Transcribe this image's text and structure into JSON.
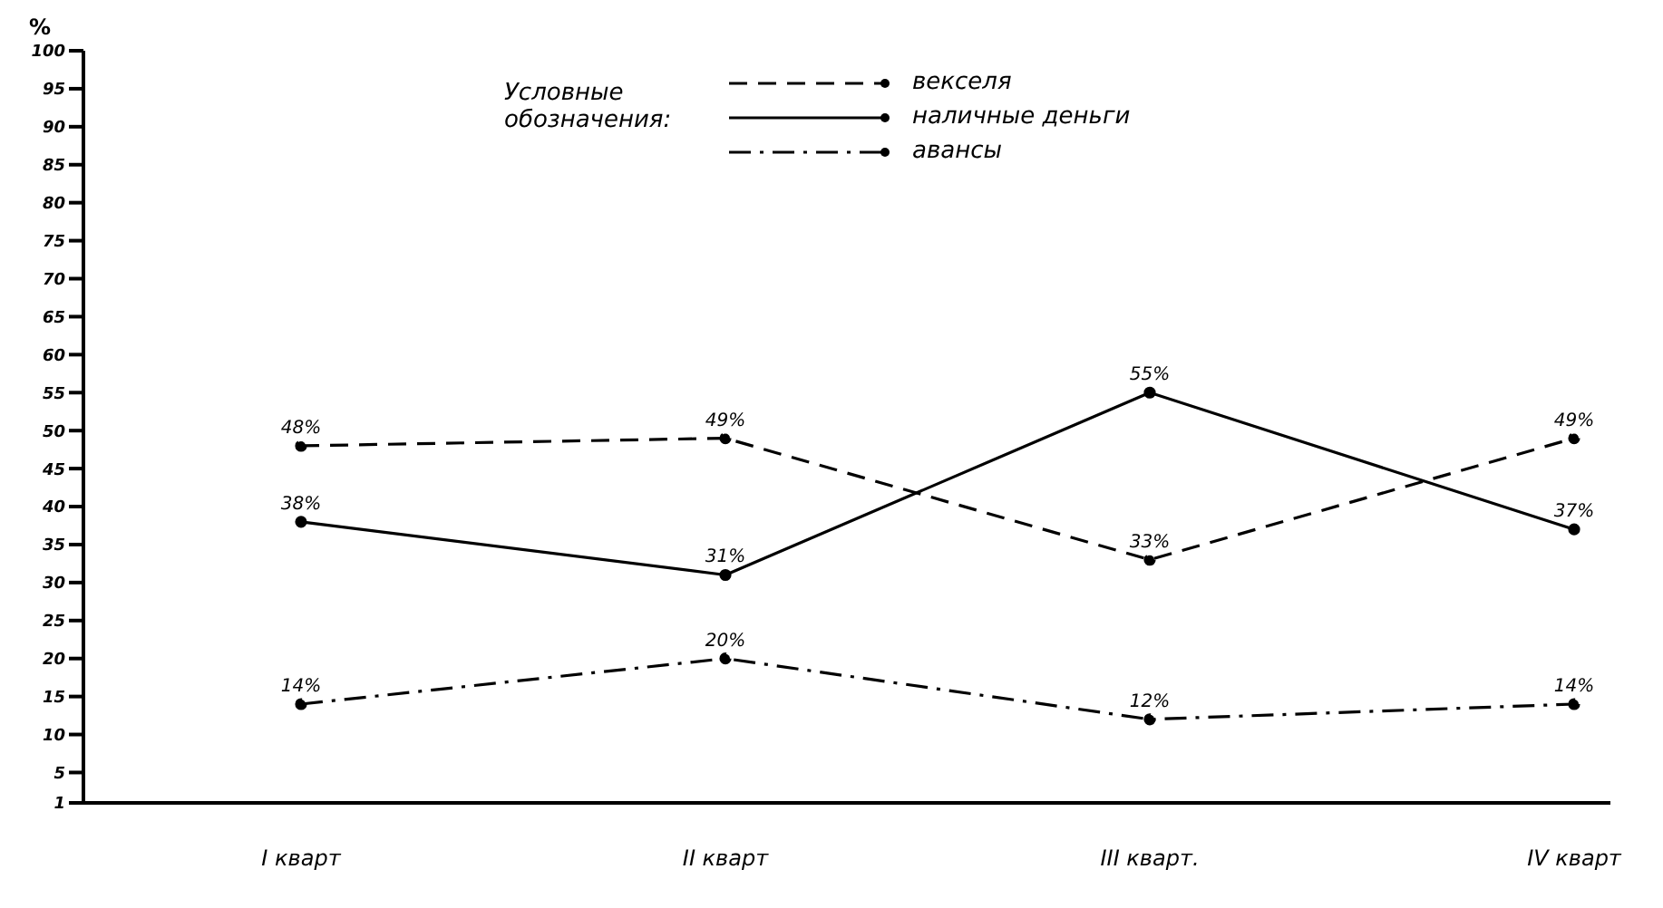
{
  "chart_data": {
    "type": "line",
    "ylabel": "%",
    "legend_title": "Условные обозначения:",
    "categories": [
      "I кварт",
      "II кварт",
      "III кварт.",
      "IV кварт"
    ],
    "series": [
      {
        "name": "векселя",
        "color": "#000000",
        "line_style": "dashed",
        "values": [
          48,
          49,
          33,
          49
        ],
        "value_labels": [
          "48%",
          "49%",
          "33%",
          "49%"
        ]
      },
      {
        "name": "наличные деньги",
        "color": "#000000",
        "line_style": "solid",
        "values": [
          38,
          31,
          55,
          37
        ],
        "value_labels": [
          "38%",
          "31%",
          "55%",
          "37%"
        ]
      },
      {
        "name": "авансы",
        "color": "#000000",
        "line_style": "dashdot",
        "values": [
          14,
          20,
          12,
          14
        ],
        "value_labels": [
          "14%",
          "20%",
          "12%",
          "14%"
        ]
      }
    ],
    "ylim": [
      1,
      100
    ],
    "yticks": [
      1,
      5,
      10,
      15,
      20,
      25,
      30,
      35,
      40,
      45,
      50,
      55,
      60,
      65,
      70,
      75,
      80,
      85,
      90,
      95,
      100
    ],
    "grid": false,
    "legend": "top",
    "marker": "circle"
  }
}
